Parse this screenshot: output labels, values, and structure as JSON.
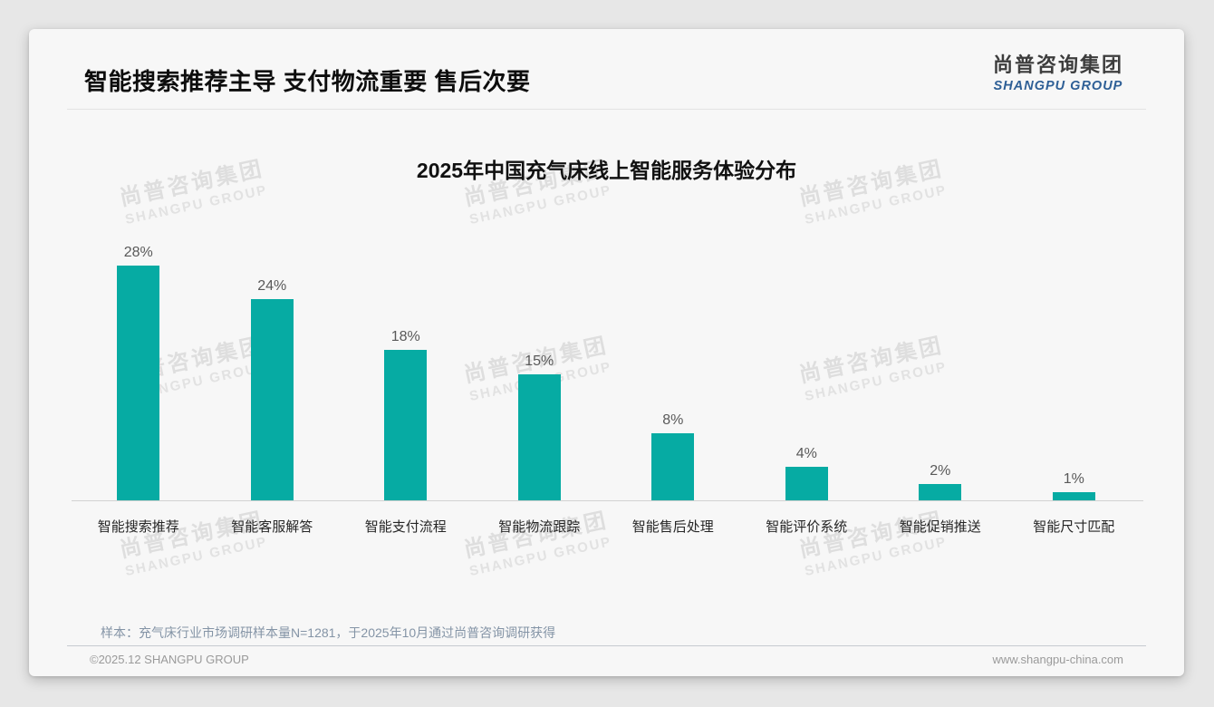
{
  "header": {
    "title": "智能搜索推荐主导 支付物流重要 售后次要"
  },
  "logo": {
    "chinese": "尚普咨询集团",
    "english": "SHANGPU GROUP",
    "english_color": "#2e5f96"
  },
  "watermark": {
    "chinese": "尚普咨询集团",
    "english": "SHANGPU GROUP"
  },
  "chart_data": {
    "type": "bar",
    "title": "2025年中国充气床线上智能服务体验分布",
    "categories": [
      "智能搜索推荐",
      "智能客服解答",
      "智能支付流程",
      "智能物流跟踪",
      "智能售后处理",
      "智能评价系统",
      "智能促销推送",
      "智能尺寸匹配"
    ],
    "values": [
      28,
      24,
      18,
      15,
      8,
      4,
      2,
      1
    ],
    "value_labels": [
      "28%",
      "24%",
      "18%",
      "15%",
      "8%",
      "4%",
      "2%",
      "1%"
    ],
    "unit": "%",
    "bar_color": "#06aba3",
    "ylim": [
      0,
      30
    ],
    "grid": false,
    "legend": false,
    "xlabel": "",
    "ylabel": ""
  },
  "note": "样本：充气床行业市场调研样本量N=1281，于2025年10月通过尚普咨询调研获得",
  "footer": {
    "left": "©2025.12 SHANGPU GROUP",
    "right": "www.shangpu-china.com"
  }
}
